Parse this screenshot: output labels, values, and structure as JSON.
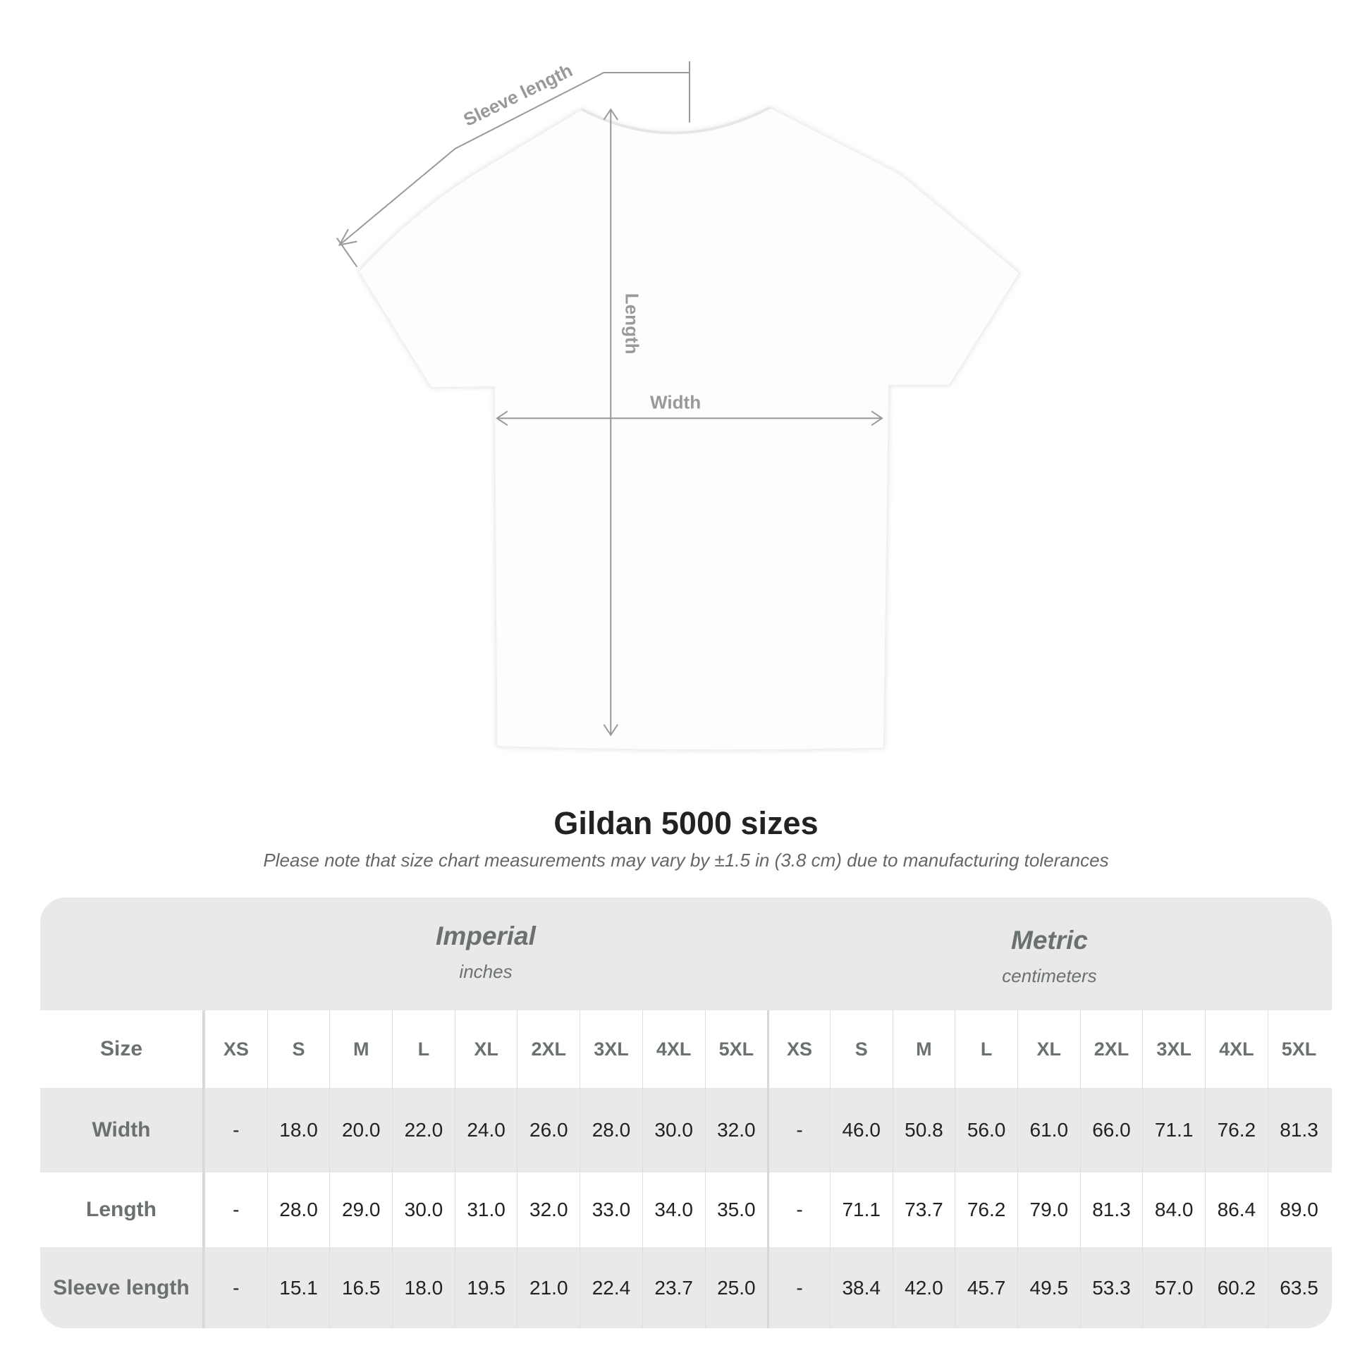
{
  "diagram": {
    "sleeve_label": "Sleeve length",
    "length_label": "Length",
    "width_label": "Width"
  },
  "title": "Gildan 5000 sizes",
  "note": "Please note that size chart measurements may vary by ±1.5 in (3.8 cm) due to manufacturing tolerances",
  "table": {
    "imperial": {
      "name": "Imperial",
      "unit": "inches"
    },
    "metric": {
      "name": "Metric",
      "unit": "centimeters"
    },
    "size_label": "Size",
    "sizes": [
      "XS",
      "S",
      "M",
      "L",
      "XL",
      "2XL",
      "3XL",
      "4XL",
      "5XL"
    ],
    "rows": [
      {
        "label": "Width",
        "imperial": [
          "-",
          "18.0",
          "20.0",
          "22.0",
          "24.0",
          "26.0",
          "28.0",
          "30.0",
          "32.0"
        ],
        "metric": [
          "-",
          "46.0",
          "50.8",
          "56.0",
          "61.0",
          "66.0",
          "71.1",
          "76.2",
          "81.3"
        ]
      },
      {
        "label": "Length",
        "imperial": [
          "-",
          "28.0",
          "29.0",
          "30.0",
          "31.0",
          "32.0",
          "33.0",
          "34.0",
          "35.0"
        ],
        "metric": [
          "-",
          "71.1",
          "73.7",
          "76.2",
          "79.0",
          "81.3",
          "84.0",
          "86.4",
          "89.0"
        ]
      },
      {
        "label": "Sleeve length",
        "imperial": [
          "-",
          "15.1",
          "16.5",
          "18.0",
          "19.5",
          "21.0",
          "22.4",
          "23.7",
          "25.0"
        ],
        "metric": [
          "-",
          "38.4",
          "42.0",
          "45.7",
          "49.5",
          "53.3",
          "57.0",
          "60.2",
          "63.5"
        ]
      }
    ]
  },
  "colors": {
    "header_bg": "#e9e9e9",
    "label_text": "#6b7070",
    "measure_line": "#999999"
  }
}
